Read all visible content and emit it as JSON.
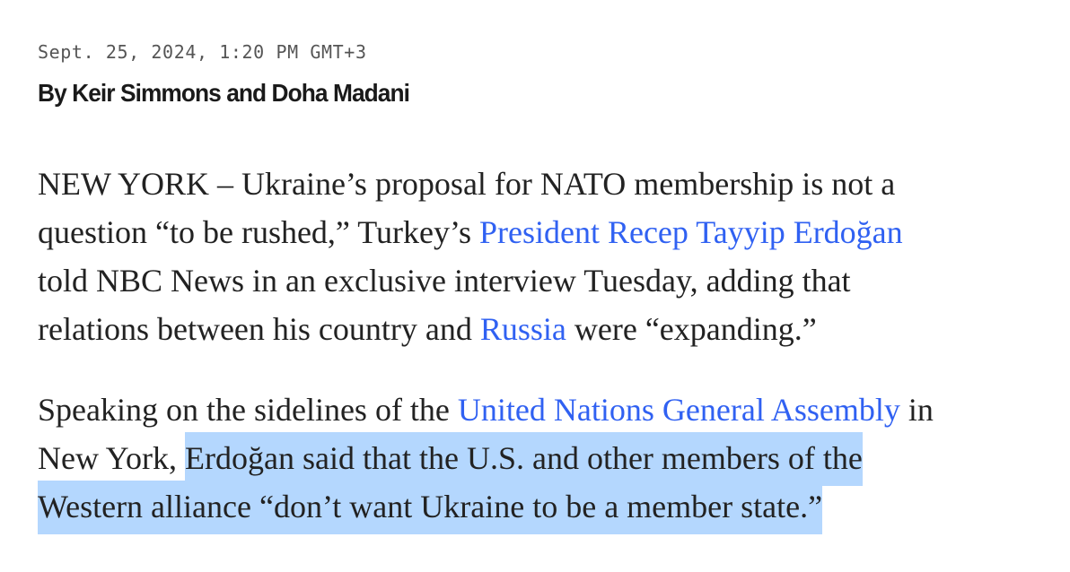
{
  "article": {
    "timestamp": "Sept. 25, 2024, 1:20 PM GMT+3",
    "byline": "By Keir Simmons and Doha Madani",
    "paragraphs": [
      {
        "t1": "NEW YORK – Ukraine’s proposal for NATO membership is not a",
        "t2": "question “to be rushed,” Turkey’s ",
        "link1": "President Recep Tayyip Erdoğan",
        "t3": "told NBC News in an exclusive interview Tuesday, adding that",
        "t4": "relations between his country and ",
        "link2": "Russia",
        "t5": " were “expanding.”"
      },
      {
        "t1": "Speaking on the sidelines of the ",
        "link1": "United Nations General Assembly",
        "t2": " in",
        "t3": "New York, ",
        "selected1": "Erdoğan said that the U.S. and other members of the",
        "selected2": "Western alliance “don’t want Ukraine to be a member state.”"
      }
    ]
  },
  "colors": {
    "link": "#3061f2",
    "selection": "#b4d7fe",
    "text": "#222222"
  }
}
